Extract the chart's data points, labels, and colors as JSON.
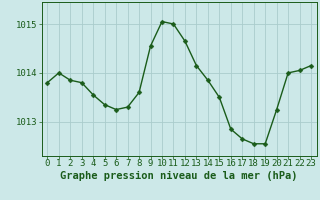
{
  "x": [
    0,
    1,
    2,
    3,
    4,
    5,
    6,
    7,
    8,
    9,
    10,
    11,
    12,
    13,
    14,
    15,
    16,
    17,
    18,
    19,
    20,
    21,
    22,
    23
  ],
  "y": [
    1013.8,
    1014.0,
    1013.85,
    1013.8,
    1013.55,
    1013.35,
    1013.25,
    1013.3,
    1013.6,
    1014.55,
    1015.05,
    1015.0,
    1014.65,
    1014.15,
    1013.85,
    1013.5,
    1012.85,
    1012.65,
    1012.55,
    1012.55,
    1013.25,
    1014.0,
    1014.05,
    1014.15
  ],
  "line_color": "#1a5c1a",
  "marker_color": "#1a5c1a",
  "bg_color": "#cce8e8",
  "grid_color": "#aacccc",
  "axis_color": "#1a5c1a",
  "title": "Graphe pression niveau de la mer (hPa)",
  "ylim_min": 1012.3,
  "ylim_max": 1015.45,
  "yticks": [
    1013,
    1014,
    1015
  ],
  "xticks": [
    0,
    1,
    2,
    3,
    4,
    5,
    6,
    7,
    8,
    9,
    10,
    11,
    12,
    13,
    14,
    15,
    16,
    17,
    18,
    19,
    20,
    21,
    22,
    23
  ],
  "title_fontsize": 7.5,
  "tick_fontsize": 6.5,
  "line_width": 1.0,
  "marker_size": 2.5
}
